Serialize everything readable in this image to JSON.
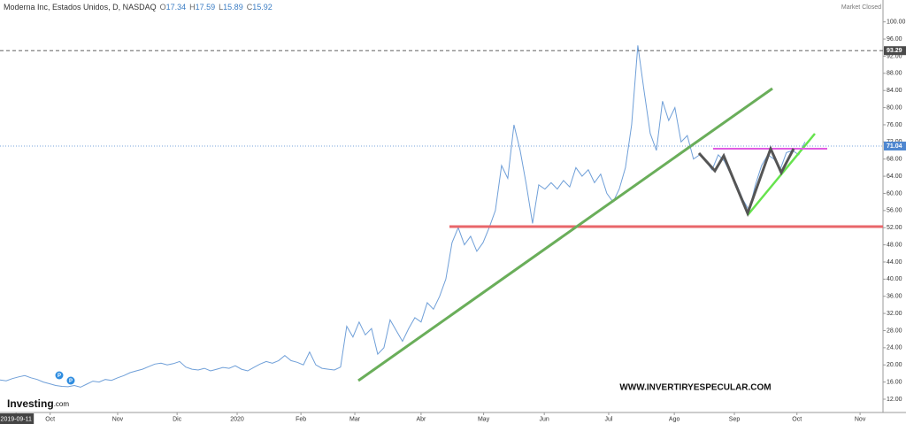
{
  "chart_data": {
    "type": "line",
    "title": "Moderna Inc, Estados Unidos, D, NASDAQ",
    "ohlc": [
      {
        "name": "O",
        "value": 17.34
      },
      {
        "name": "H",
        "value": 17.59
      },
      {
        "name": "L",
        "value": 15.89
      },
      {
        "name": "C",
        "value": 15.92
      }
    ],
    "status": "Market Closed",
    "color": "#6f9fd8",
    "values": [
      16.5,
      16.3,
      16.8,
      17.2,
      17.5,
      17.0,
      16.6,
      16.0,
      15.6,
      15.2,
      15.0,
      14.9,
      15.2,
      14.8,
      15.5,
      16.2,
      16.0,
      16.6,
      16.4,
      17.0,
      17.5,
      18.2,
      18.6,
      19.0,
      19.6,
      20.2,
      20.4,
      20.0,
      20.3,
      20.8,
      19.5,
      19.0,
      18.8,
      19.2,
      18.6,
      19.0,
      19.4,
      19.2,
      19.8,
      19.0,
      18.6,
      19.4,
      20.2,
      20.8,
      20.4,
      21.0,
      22.2,
      21.0,
      20.6,
      20.0,
      23.0,
      20.0,
      19.2,
      19.0,
      18.8,
      19.5,
      29.0,
      26.5,
      30.0,
      27.0,
      28.5,
      22.5,
      24.0,
      30.5,
      28.0,
      25.5,
      28.5,
      31.0,
      30.0,
      34.5,
      33.0,
      36.0,
      40.0,
      48.5,
      52.0,
      48.0,
      50.0,
      46.5,
      48.5,
      52.0,
      56.0,
      66.5,
      63.5,
      76.0,
      70.0,
      62.0,
      53.0,
      62.0,
      61.0,
      62.5,
      61.0,
      63.0,
      61.5,
      66.0,
      64.0,
      65.5,
      62.5,
      64.5,
      60.0,
      58.0,
      61.0,
      66.0,
      76.0,
      94.5,
      84.0,
      74.0,
      70.0,
      81.5,
      77.0,
      80.0,
      72.0,
      73.5,
      68.0,
      69.0,
      67.5,
      65.5,
      69.0,
      67.5,
      64.5,
      62.0,
      58.5,
      56.0,
      62.0,
      66.5,
      69.0,
      68.0,
      65.5,
      69.5,
      70.0,
      69.0,
      72.0
    ],
    "xlim": [
      0,
      142.6
    ],
    "xticks": [
      {
        "value": 2.6,
        "label": "2019-09-11"
      },
      {
        "value": 8.1,
        "label": "Oct"
      },
      {
        "value": 19,
        "label": "Nov"
      },
      {
        "value": 28.6,
        "label": "Dic"
      },
      {
        "value": 38.3,
        "label": "2020"
      },
      {
        "value": 48.6,
        "label": "Feb"
      },
      {
        "value": 57.3,
        "label": "Mar"
      },
      {
        "value": 68,
        "label": "Abr"
      },
      {
        "value": 78.1,
        "label": "May"
      },
      {
        "value": 87.9,
        "label": "Jun"
      },
      {
        "value": 98.3,
        "label": "Jul"
      },
      {
        "value": 108.9,
        "label": "Ago"
      },
      {
        "value": 118.6,
        "label": "Sep"
      },
      {
        "value": 128.7,
        "label": "Oct"
      },
      {
        "value": 138.9,
        "label": "Nov"
      }
    ],
    "ylim": [
      8.9,
      105.1
    ],
    "yticks": [
      {
        "value": 12,
        "label": "12.00"
      },
      {
        "value": 16,
        "label": "16.00"
      },
      {
        "value": 20,
        "label": "20.00"
      },
      {
        "value": 24,
        "label": "24.00"
      },
      {
        "value": 28,
        "label": "28.00"
      },
      {
        "value": 32,
        "label": "32.00"
      },
      {
        "value": 36,
        "label": "36.00"
      },
      {
        "value": 40,
        "label": "40.00"
      },
      {
        "value": 44,
        "label": "44.00"
      },
      {
        "value": 48,
        "label": "48.00"
      },
      {
        "value": 52,
        "label": "52.00"
      },
      {
        "value": 56,
        "label": "56.00"
      },
      {
        "value": 60,
        "label": "60.00"
      },
      {
        "value": 64,
        "label": "64.00"
      },
      {
        "value": 68,
        "label": "68.00"
      },
      {
        "value": 72,
        "label": "72.00"
      },
      {
        "value": 76,
        "label": "76.00"
      },
      {
        "value": 80,
        "label": "80.00"
      },
      {
        "value": 84,
        "label": "84.00"
      },
      {
        "value": 88,
        "label": "88.00"
      },
      {
        "value": 92,
        "label": "92.00"
      },
      {
        "value": 96,
        "label": "96.00"
      },
      {
        "value": 100,
        "label": "100.00"
      }
    ],
    "price_markers": [
      {
        "value": 93.29,
        "color": "#4a4a4a"
      },
      {
        "value": 71.04,
        "color": "#4f87d0"
      }
    ],
    "event_markers": [
      "P",
      "P"
    ],
    "watermark": "WWW.INVERTIRYESPECULAR.COM",
    "brand": [
      "Investing",
      ".com"
    ]
  }
}
